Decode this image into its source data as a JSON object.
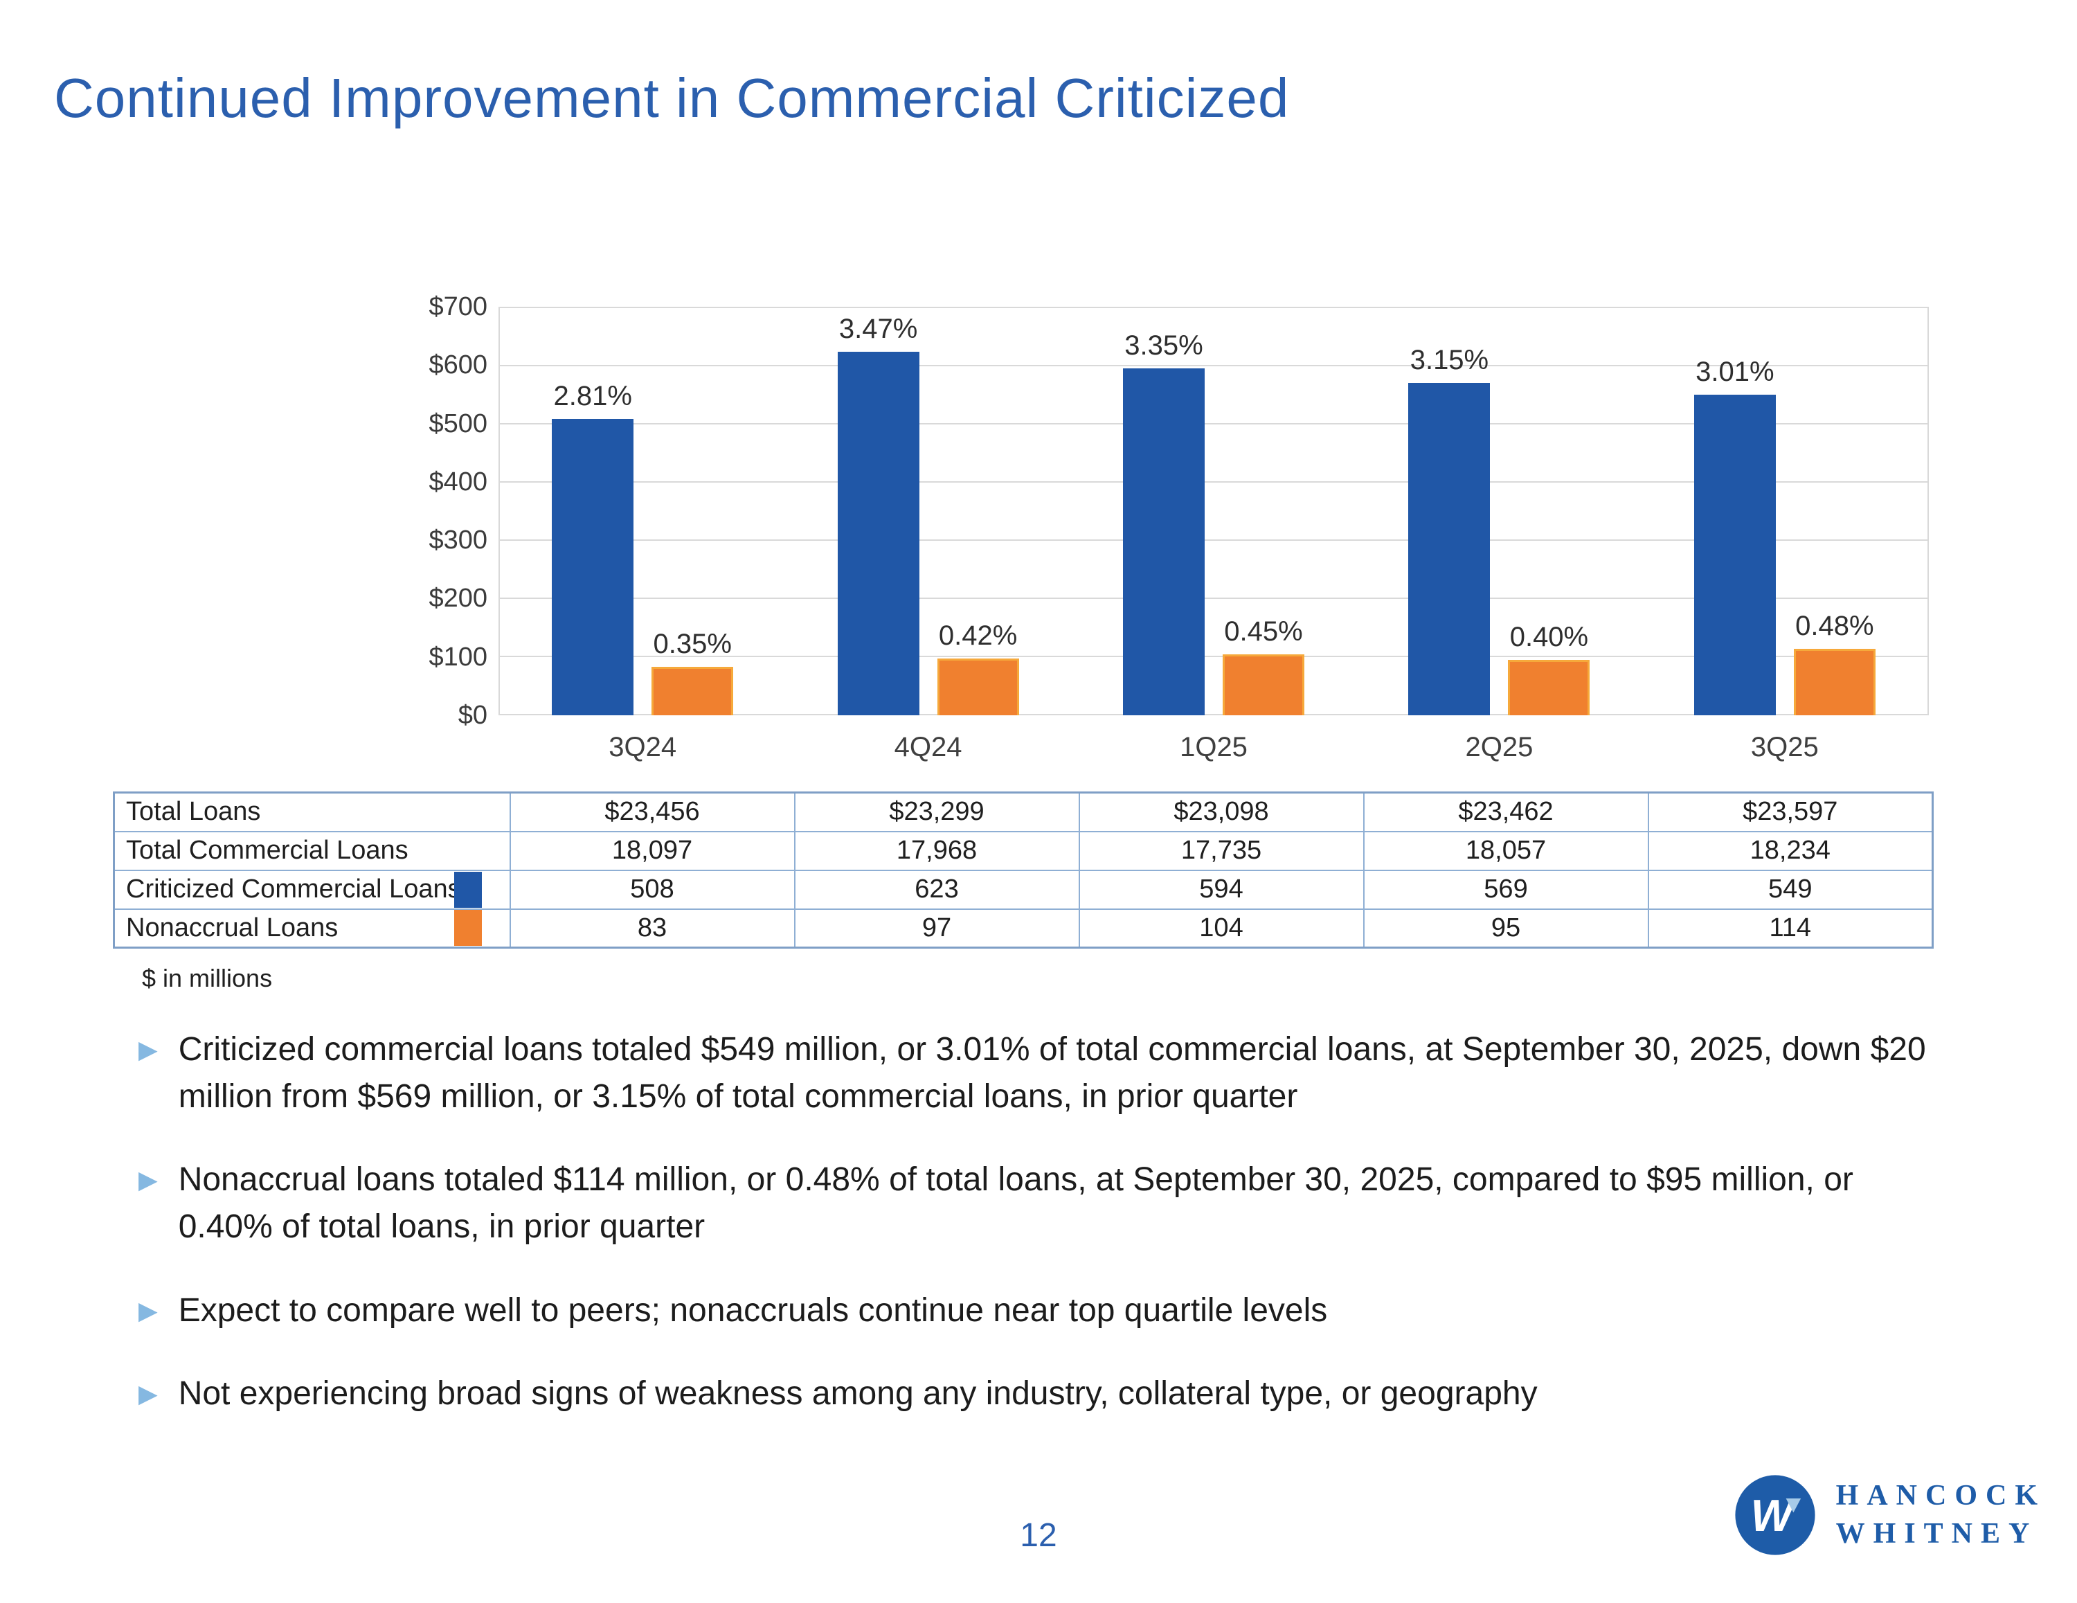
{
  "title": "Continued Improvement in Commercial Criticized",
  "chart_data": {
    "type": "bar",
    "categories": [
      "3Q24",
      "4Q24",
      "1Q25",
      "2Q25",
      "3Q25"
    ],
    "series": [
      {
        "name": "Criticized Commercial Loans",
        "color": "#2057A7",
        "values": [
          508,
          623,
          594,
          569,
          549
        ],
        "labels": [
          "2.81%",
          "3.47%",
          "3.35%",
          "3.15%",
          "3.01%"
        ]
      },
      {
        "name": "Nonaccrual Loans",
        "color": "#F0802F",
        "border_color": "#F6A93B",
        "values": [
          83,
          97,
          104,
          95,
          114
        ],
        "labels": [
          "0.35%",
          "0.42%",
          "0.45%",
          "0.40%",
          "0.48%"
        ]
      }
    ],
    "ylim": [
      0,
      700
    ],
    "yticks": [
      "$700",
      "$600",
      "$500",
      "$400",
      "$300",
      "$200",
      "$100",
      "$0"
    ],
    "grid": "horizontal",
    "legend_position": "in-table-left-column",
    "units": "$ in millions"
  },
  "table": {
    "rows": [
      {
        "label": "Total Loans",
        "values": [
          "$23,456",
          "$23,299",
          "$23,098",
          "$23,462",
          "$23,597"
        ]
      },
      {
        "label": "Total Commercial Loans",
        "values": [
          "18,097",
          "17,968",
          "17,735",
          "18,057",
          "18,234"
        ]
      },
      {
        "label": "Criticized Commercial Loans",
        "swatch_color": "#2057A7",
        "values": [
          "508",
          "623",
          "594",
          "569",
          "549"
        ]
      },
      {
        "label": "Nonaccrual Loans",
        "swatch_color": "#F0802F",
        "values": [
          "83",
          "97",
          "104",
          "95",
          "114"
        ]
      }
    ],
    "note": "$ in millions"
  },
  "bullets": [
    "Criticized commercial loans totaled $549 million, or 3.01% of total commercial loans, at September 30, 2025, down $20 million from $569 million, or 3.15% of total commercial loans, in prior quarter",
    "Nonaccrual loans totaled $114 million, or 0.48% of total loans, at September 30, 2025, compared to $95 million, or 0.40% of total loans, in prior quarter",
    "Expect to compare well to peers; nonaccruals continue near top quartile levels",
    "Not experiencing broad signs of weakness among any industry, collateral type, or geography"
  ],
  "footer": {
    "page_number": "12",
    "logo_line1": "HANCOCK",
    "logo_line2": "WHITNEY"
  },
  "colors": {
    "title_blue": "#2B5FAE",
    "bullet_marker_blue": "#85B8E1",
    "table_border_blue": "#8FAFD4",
    "gridline_gray": "#D9D9D9",
    "logo_blue": "#1E5CA8",
    "logo_triangle_light_blue": "#A7CBE8"
  }
}
